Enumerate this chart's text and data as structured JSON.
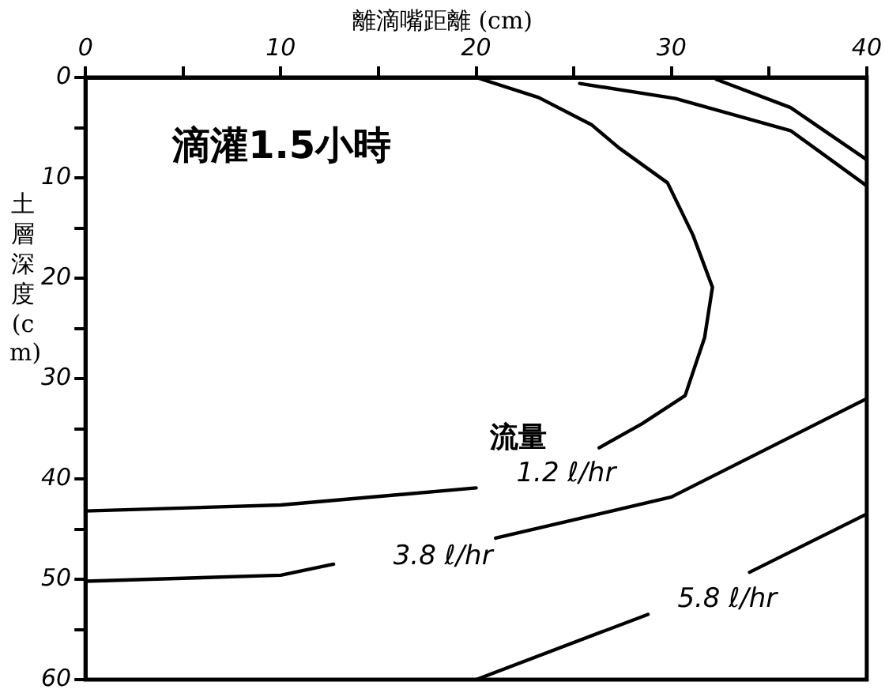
{
  "chart_data": {
    "type": "line",
    "title": "滴灌1.5小時",
    "xlabel": "離滴嘴距離 (cm)",
    "ylabel": "土層深度 (cm)",
    "annotations": [
      "流量"
    ],
    "xlim": [
      0,
      40
    ],
    "xticks": [
      0,
      {
        "value": 5,
        "label": null
      },
      10,
      {
        "value": 15,
        "label": null
      },
      20,
      {
        "value": 25,
        "label": null
      },
      30,
      {
        "value": 35,
        "label": null
      },
      40
    ],
    "ylim": [
      60,
      0
    ],
    "yticks": [
      0,
      {
        "value": 5,
        "label": null
      },
      10,
      {
        "value": 15,
        "label": null
      },
      20,
      {
        "value": 25,
        "label": null
      },
      30,
      {
        "value": 35,
        "label": null
      },
      40,
      {
        "value": 45,
        "label": null
      },
      50,
      {
        "value": 55,
        "label": null
      },
      60
    ],
    "grid": false,
    "legend": false,
    "marker": "none",
    "line_style": "solid",
    "series": [
      {
        "name": "1.2 ℓ/hr",
        "color": "#000000",
        "x": [
          0,
          10,
          20,
          null,
          26.3,
          28.5,
          30.7,
          31.7,
          32.1,
          31.1,
          29.8,
          27.3,
          25.9,
          23.2,
          20
        ],
        "values": [
          43.2,
          42.6,
          40.9,
          null,
          36.9,
          34.5,
          31.7,
          25.9,
          20.9,
          15.7,
          10.5,
          7,
          4.7,
          2,
          0
        ]
      },
      {
        "name": "3.8 ℓ/hr",
        "color": "#000000",
        "x": [
          0,
          10,
          12.7,
          null,
          21,
          30,
          40
        ],
        "values": [
          50.2,
          49.6,
          48.5,
          null,
          45.9,
          41.8,
          32
        ]
      },
      {
        "name": "5.8 ℓ/hr",
        "color": "#000000",
        "x": [
          20,
          28.8,
          null,
          34,
          40
        ],
        "values": [
          60,
          53.5,
          null,
          49.3,
          43.5
        ]
      },
      {
        "color": "#000000",
        "x": [
          25.3,
          30.2,
          36.1,
          40
        ],
        "values": [
          0.6,
          2.1,
          5.3,
          10.8
        ]
      },
      {
        "color": "#000000",
        "x": [
          32.3,
          36.1,
          40
        ],
        "values": [
          0.2,
          3,
          8.2
        ]
      }
    ]
  }
}
